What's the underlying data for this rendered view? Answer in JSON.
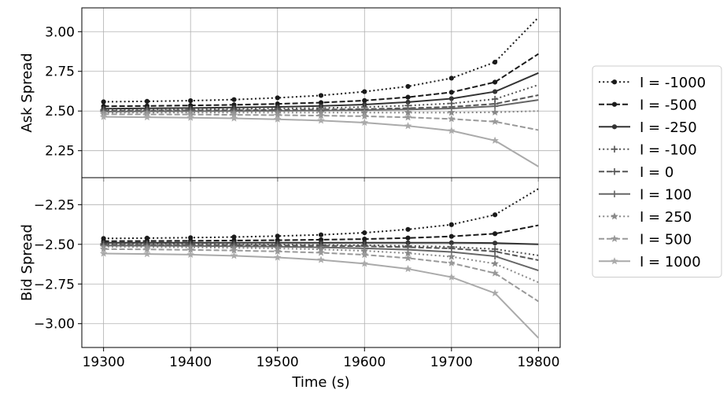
{
  "chart_data": {
    "type": "line",
    "xlabel": "Time (s)",
    "x": [
      19300,
      19350,
      19400,
      19450,
      19500,
      19550,
      19600,
      19650,
      19700,
      19750,
      19800
    ],
    "xlim": [
      19275,
      19825
    ],
    "xticks": [
      19300,
      19400,
      19500,
      19600,
      19700,
      19800
    ],
    "x_tick_labels": [
      "19300",
      "19400",
      "19500",
      "19600",
      "19700",
      "19800"
    ],
    "grid": true,
    "legend_position": "outside right",
    "legend": [
      {
        "label": "I = -1000",
        "color": "#1a1a1a",
        "dash": "dotted",
        "marker": "circle"
      },
      {
        "label": "I = -500",
        "color": "#1a1a1a",
        "dash": "dashed",
        "marker": "circle"
      },
      {
        "label": "I = -250",
        "color": "#333333",
        "dash": "solid",
        "marker": "circle"
      },
      {
        "label": "I = -100",
        "color": "#555555",
        "dash": "dotted",
        "marker": "plus"
      },
      {
        "label": "I = 0",
        "color": "#555555",
        "dash": "dashed",
        "marker": "plus"
      },
      {
        "label": "I = 100",
        "color": "#666666",
        "dash": "solid",
        "marker": "plus"
      },
      {
        "label": "I = 250",
        "color": "#888888",
        "dash": "dotted",
        "marker": "star"
      },
      {
        "label": "I = 500",
        "color": "#999999",
        "dash": "dashed",
        "marker": "star"
      },
      {
        "label": "I = 1000",
        "color": "#aaaaaa",
        "dash": "solid",
        "marker": "star"
      }
    ],
    "panels": [
      {
        "ylabel": "Ask Spread",
        "ylim": [
          2.08,
          3.15
        ],
        "yticks": [
          2.25,
          2.5,
          2.75,
          3.0
        ],
        "y_tick_labels": [
          "2.25",
          "2.50",
          "2.75",
          "3.00"
        ],
        "series": [
          {
            "values": [
              2.558,
              2.561,
              2.565,
              2.572,
              2.583,
              2.598,
              2.622,
              2.655,
              2.707,
              2.808,
              3.09
            ]
          },
          {
            "values": [
              2.53,
              2.532,
              2.535,
              2.539,
              2.545,
              2.553,
              2.566,
              2.587,
              2.618,
              2.682,
              2.86
            ]
          },
          {
            "values": [
              2.515,
              2.517,
              2.519,
              2.522,
              2.526,
              2.532,
              2.541,
              2.556,
              2.578,
              2.622,
              2.74
            ]
          },
          {
            "values": [
              2.508,
              2.509,
              2.51,
              2.512,
              2.515,
              2.519,
              2.525,
              2.534,
              2.548,
              2.575,
              2.665
            ]
          },
          {
            "values": [
              2.502,
              2.503,
              2.504,
              2.505,
              2.507,
              2.509,
              2.512,
              2.518,
              2.526,
              2.545,
              2.6
            ]
          },
          {
            "values": [
              2.497,
              2.498,
              2.499,
              2.5,
              2.501,
              2.503,
              2.506,
              2.51,
              2.516,
              2.53,
              2.57
            ]
          },
          {
            "values": [
              2.49,
              2.49,
              2.49,
              2.49,
              2.49,
              2.49,
              2.49,
              2.49,
              2.49,
              2.492,
              2.5
            ]
          },
          {
            "values": [
              2.48,
              2.479,
              2.478,
              2.476,
              2.474,
              2.471,
              2.467,
              2.46,
              2.45,
              2.433,
              2.38
            ]
          },
          {
            "values": [
              2.463,
              2.461,
              2.458,
              2.454,
              2.448,
              2.44,
              2.427,
              2.406,
              2.376,
              2.314,
              2.15
            ]
          }
        ]
      },
      {
        "ylabel": "Bid Spread",
        "ylim": [
          -3.15,
          -2.08
        ],
        "yticks": [
          -2.25,
          -2.5,
          -2.75,
          -3.0
        ],
        "y_tick_labels": [
          "−2.25",
          "−2.50",
          "−2.75",
          "−3.00"
        ],
        "series": [
          {
            "values": [
              -2.463,
              -2.461,
              -2.458,
              -2.454,
              -2.448,
              -2.44,
              -2.427,
              -2.406,
              -2.376,
              -2.314,
              -2.15
            ]
          },
          {
            "values": [
              -2.48,
              -2.479,
              -2.478,
              -2.476,
              -2.474,
              -2.471,
              -2.467,
              -2.46,
              -2.45,
              -2.433,
              -2.38
            ]
          },
          {
            "values": [
              -2.49,
              -2.49,
              -2.49,
              -2.49,
              -2.49,
              -2.49,
              -2.49,
              -2.49,
              -2.49,
              -2.492,
              -2.5
            ]
          },
          {
            "values": [
              -2.497,
              -2.498,
              -2.499,
              -2.5,
              -2.501,
              -2.503,
              -2.506,
              -2.51,
              -2.516,
              -2.53,
              -2.57
            ]
          },
          {
            "values": [
              -2.502,
              -2.503,
              -2.504,
              -2.505,
              -2.507,
              -2.509,
              -2.512,
              -2.518,
              -2.526,
              -2.545,
              -2.6
            ]
          },
          {
            "values": [
              -2.508,
              -2.509,
              -2.51,
              -2.512,
              -2.515,
              -2.519,
              -2.525,
              -2.534,
              -2.548,
              -2.575,
              -2.665
            ]
          },
          {
            "values": [
              -2.515,
              -2.517,
              -2.519,
              -2.522,
              -2.526,
              -2.532,
              -2.541,
              -2.556,
              -2.578,
              -2.622,
              -2.74
            ]
          },
          {
            "values": [
              -2.53,
              -2.532,
              -2.535,
              -2.539,
              -2.545,
              -2.553,
              -2.566,
              -2.587,
              -2.618,
              -2.682,
              -2.86
            ]
          },
          {
            "values": [
              -2.558,
              -2.561,
              -2.565,
              -2.572,
              -2.583,
              -2.598,
              -2.622,
              -2.655,
              -2.707,
              -2.808,
              -3.09
            ]
          }
        ]
      }
    ]
  }
}
